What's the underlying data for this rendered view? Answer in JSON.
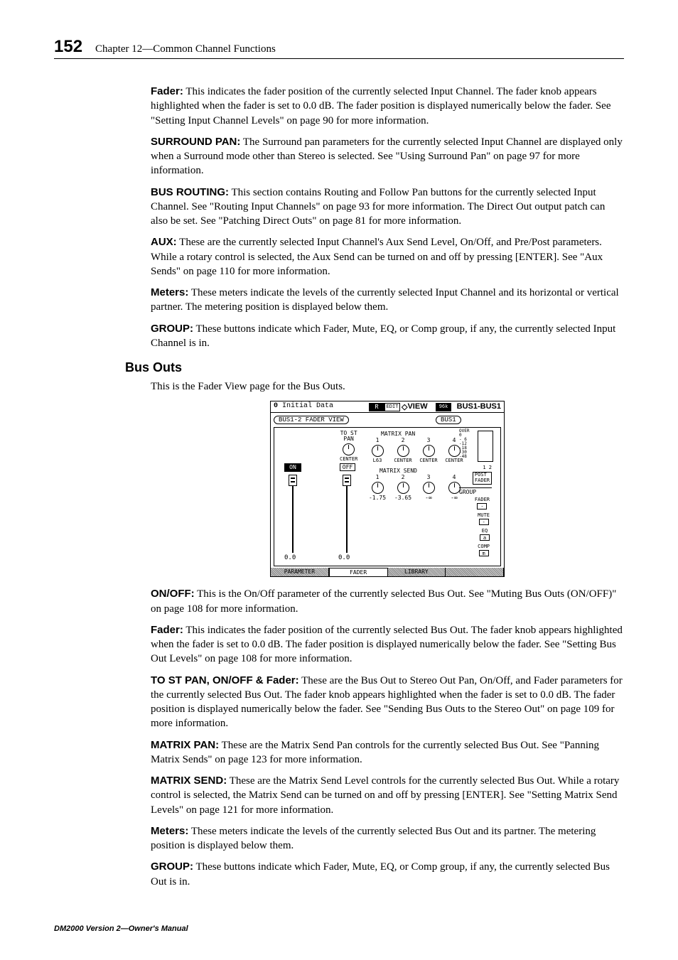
{
  "header": {
    "page_number": "152",
    "chapter": "Chapter 12—Common Channel Functions"
  },
  "top_entries": [
    {
      "term": "Fader:",
      "text": " This indicates the fader position of the currently selected Input Channel. The fader knob appears highlighted when the fader is set to 0.0 dB. The fader position is displayed numerically below the fader. See \"Setting Input Channel Levels\" on page 90 for more information."
    },
    {
      "term": "SURROUND PAN:",
      "text": " The Surround pan parameters for the currently selected Input Channel are displayed only when a Surround mode other than Stereo is selected. See \"Using Surround Pan\" on page 97 for more information."
    },
    {
      "term": "BUS ROUTING:",
      "text": " This section contains Routing and Follow Pan buttons for the currently selected Input Channel. See \"Routing Input Channels\" on page 93 for more information. The Direct Out output patch can also be set. See \"Patching Direct Outs\" on page 81 for more information."
    },
    {
      "term": "AUX:",
      "text": " These are the currently selected Input Channel's Aux Send Level, On/Off, and Pre/Post parameters. While a rotary control is selected, the Aux Send can be turned on and off by pressing [ENTER]. See \"Aux Sends\" on page 110 for more information."
    },
    {
      "term": "Meters:",
      "text": " These meters indicate the levels of the currently selected Input Channel and its horizontal or vertical partner. The metering position is displayed below them."
    },
    {
      "term": "GROUP:",
      "text": " These buttons indicate which Fader, Mute, EQ, or Comp group, if any, the currently selected Input Channel is in."
    }
  ],
  "subhead": "Bus Outs",
  "bus_intro": "This is the Fader View page for the Bus Outs.",
  "figure": {
    "top": {
      "mem_icon": "0",
      "title": "Initial Data",
      "r1": "R",
      "r1b": "EDIT",
      "view_diamond": "◇",
      "view": "VIEW",
      "r2": "96k",
      "bus": "BUS1-BUS1"
    },
    "sub1": "BUS1-2 FADER VIEW",
    "sub2": "BUS1",
    "on": "ON",
    "fader1_val": "0.0",
    "tost": {
      "lbl": "TO ST\nPAN",
      "center": "CENTER",
      "off": "OFF",
      "fader2_val": "0.0"
    },
    "matrix_pan": {
      "lbl": "MATRIX PAN",
      "cols": [
        {
          "n": "1",
          "c": "L63"
        },
        {
          "n": "2",
          "c": "CENTER"
        },
        {
          "n": "3",
          "c": "CENTER"
        },
        {
          "n": "4",
          "c": "CENTER"
        }
      ]
    },
    "matrix_send": {
      "lbl": "MATRIX SEND",
      "cols": [
        {
          "n": "1",
          "v": "-1.75"
        },
        {
          "n": "2",
          "v": "-3.65"
        },
        {
          "n": "3",
          "v": "-∞"
        },
        {
          "n": "4",
          "v": "-∞"
        }
      ]
    },
    "meters": {
      "scale": [
        "OVER",
        "0",
        "- 6",
        "-12",
        "-18",
        "-30",
        "-48"
      ],
      "nums": "1    2",
      "post": "POST\nFADER",
      "group": "GROUP",
      "items": [
        {
          "l": "FADER",
          "b": "-"
        },
        {
          "l": "MUTE",
          "b": "-"
        },
        {
          "l": "EQ",
          "b": "a"
        },
        {
          "l": "COMP",
          "b": "m"
        }
      ]
    },
    "tabs": [
      "PARAMETER",
      "FADER",
      "LIBRARY",
      ""
    ]
  },
  "bus_entries": [
    {
      "term": "ON/OFF:",
      "text": " This is the On/Off parameter of the currently selected Bus Out. See \"Muting Bus Outs (ON/OFF)\" on page 108 for more information."
    },
    {
      "term": "Fader:",
      "text": " This indicates the fader position of the currently selected Bus Out. The fader knob appears highlighted when the fader is set to 0.0 dB. The fader position is displayed numerically below the fader. See \"Setting Bus Out Levels\" on page 108 for more information."
    },
    {
      "term": "TO ST PAN, ON/OFF & Fader:",
      "text": " These are the Bus Out to Stereo Out Pan, On/Off, and Fader parameters for the currently selected Bus Out. The fader knob appears highlighted when the fader is set to 0.0 dB. The fader position is displayed numerically below the fader. See \"Sending Bus Outs to the Stereo Out\" on page 109 for more information."
    },
    {
      "term": "MATRIX PAN:",
      "text": " These are the Matrix Send Pan controls for the currently selected Bus Out. See \"Panning Matrix Sends\" on page 123 for more information."
    },
    {
      "term": "MATRIX SEND:",
      "text": " These are the Matrix Send Level controls for the currently selected Bus Out. While a rotary control is selected, the Matrix Send can be turned on and off by pressing [ENTER]. See \"Setting Matrix Send Levels\" on page 121 for more information."
    },
    {
      "term": "Meters:",
      "text": " These meters indicate the levels of the currently selected Bus Out and its partner. The metering position is displayed below them."
    },
    {
      "term": "GROUP:",
      "text": " These buttons indicate which Fader, Mute, EQ, or Comp group, if any, the currently selected Bus Out is in."
    }
  ],
  "footer": "DM2000 Version 2—Owner's Manual"
}
